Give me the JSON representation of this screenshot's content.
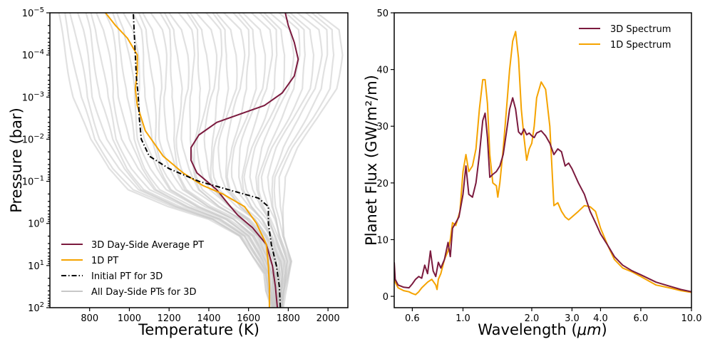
{
  "chart_data": [
    {
      "type": "line",
      "panel": "left",
      "xlabel": "Temperature (K)",
      "ylabel": "Pressure (bar)",
      "xlim": [
        600,
        2100
      ],
      "ylim_log10_pressure": [
        2,
        -5
      ],
      "yscale": "log (inverted)",
      "x_ticks": [
        "800",
        "1000",
        "1200",
        "1400",
        "1600",
        "1800",
        "2000"
      ],
      "x_tick_values": [
        800,
        1000,
        1200,
        1400,
        1600,
        1800,
        2000
      ],
      "y_ticks": [
        {
          "base": "10",
          "exp": "−5",
          "log": -5
        },
        {
          "base": "10",
          "exp": "−4",
          "log": -4
        },
        {
          "base": "10",
          "exp": "−3",
          "log": -3
        },
        {
          "base": "10",
          "exp": "−2",
          "log": -2
        },
        {
          "base": "10",
          "exp": "−1",
          "log": -1
        },
        {
          "base": "10",
          "exp": "0",
          "log": 0
        },
        {
          "base": "10",
          "exp": "1",
          "log": 1
        },
        {
          "base": "10",
          "exp": "2",
          "log": 2
        }
      ],
      "legend_position": "lower-left",
      "series": [
        {
          "name": "All Day-Side PTs for 3D",
          "color": "#c8c8c8",
          "band": true,
          "cool_edge": [
            [
              640,
              -5
            ],
            [
              680,
              -4
            ],
            [
              720,
              -3
            ],
            [
              800,
              -2
            ],
            [
              900,
              -1.3
            ],
            [
              1000,
              -0.8
            ],
            [
              1200,
              -0.4
            ],
            [
              1400,
              -0.1
            ],
            [
              1550,
              0.3
            ],
            [
              1620,
              0.8
            ],
            [
              1680,
              1.2
            ],
            [
              1690,
              1.6
            ],
            [
              1720,
              2
            ]
          ],
          "hot_edge": [
            [
              1950,
              -5
            ],
            [
              2060,
              -4.6
            ],
            [
              2070,
              -4
            ],
            [
              2040,
              -3.2
            ],
            [
              1950,
              -2.5
            ],
            [
              1850,
              -1.8
            ],
            [
              1780,
              -1.1
            ],
            [
              1770,
              -0.4
            ],
            [
              1780,
              0.3
            ],
            [
              1820,
              0.9
            ],
            [
              1800,
              1.3
            ],
            [
              1780,
              1.7
            ],
            [
              1770,
              2
            ]
          ],
          "line_count": 40
        },
        {
          "name": "3D Day-Side Average PT",
          "color": "#7b1a3e",
          "points": [
            [
              1745,
              2
            ],
            [
              1735,
              1.5
            ],
            [
              1720,
              1.0
            ],
            [
              1690,
              0.5
            ],
            [
              1620,
              0.1
            ],
            [
              1545,
              -0.2
            ],
            [
              1500,
              -0.45
            ],
            [
              1440,
              -0.8
            ],
            [
              1340,
              -1.2
            ],
            [
              1310,
              -1.5
            ],
            [
              1310,
              -1.8
            ],
            [
              1350,
              -2.1
            ],
            [
              1440,
              -2.4
            ],
            [
              1560,
              -2.6
            ],
            [
              1680,
              -2.8
            ],
            [
              1770,
              -3.1
            ],
            [
              1830,
              -3.5
            ],
            [
              1850,
              -3.9
            ],
            [
              1830,
              -4.3
            ],
            [
              1800,
              -4.7
            ],
            [
              1785,
              -5
            ]
          ]
        },
        {
          "name": "1D PT",
          "color": "#f5a300",
          "points": [
            [
              1705,
              2
            ],
            [
              1705,
              1.5
            ],
            [
              1700,
              1.0
            ],
            [
              1690,
              0.5
            ],
            [
              1640,
              0.0
            ],
            [
              1580,
              -0.4
            ],
            [
              1470,
              -0.7
            ],
            [
              1370,
              -0.9
            ],
            [
              1270,
              -1.2
            ],
            [
              1170,
              -1.6
            ],
            [
              1080,
              -2.2
            ],
            [
              1040,
              -2.8
            ],
            [
              1030,
              -3.2
            ],
            [
              1040,
              -3.6
            ],
            [
              1040,
              -4.0
            ],
            [
              990,
              -4.4
            ],
            [
              930,
              -4.7
            ],
            [
              880,
              -5
            ]
          ]
        },
        {
          "name": "Initial PT for 3D",
          "color": "#000000",
          "dash": "dashdot",
          "points": [
            [
              1760,
              2
            ],
            [
              1755,
              1.5
            ],
            [
              1740,
              1.0
            ],
            [
              1715,
              0.5
            ],
            [
              1700,
              0.0
            ],
            [
              1700,
              -0.4
            ],
            [
              1650,
              -0.6
            ],
            [
              1500,
              -0.8
            ],
            [
              1350,
              -1.0
            ],
            [
              1200,
              -1.3
            ],
            [
              1100,
              -1.6
            ],
            [
              1060,
              -2.0
            ],
            [
              1050,
              -2.5
            ],
            [
              1045,
              -3.0
            ],
            [
              1035,
              -3.5
            ],
            [
              1030,
              -4.0
            ],
            [
              1025,
              -4.5
            ],
            [
              1020,
              -5
            ]
          ]
        }
      ]
    },
    {
      "type": "line",
      "panel": "right",
      "xlabel_prefix": "Wavelength (",
      "xlabel_unit": "μm",
      "xlabel_suffix": ")",
      "ylabel": "Planet Flux (GW/m²/m)",
      "xscale": "log",
      "xlim": [
        0.5,
        10.0
      ],
      "ylim": [
        -2,
        50
      ],
      "x_ticks": [
        "0.6",
        "1.0",
        "2.0",
        "3.0",
        "4.0",
        "6.0",
        "10.0"
      ],
      "x_tick_values": [
        0.6,
        1.0,
        2.0,
        3.0,
        4.0,
        6.0,
        10.0
      ],
      "y_ticks": [
        "0",
        "10",
        "20",
        "30",
        "40",
        "50"
      ],
      "y_tick_values": [
        0,
        10,
        20,
        30,
        40,
        50
      ],
      "legend_position": "top-right",
      "series": [
        {
          "name": "3D Spectrum",
          "color": "#7b1a3e",
          "points": [
            [
              0.5,
              6
            ],
            [
              0.505,
              3
            ],
            [
              0.52,
              2
            ],
            [
              0.55,
              1.6
            ],
            [
              0.58,
              1.5
            ],
            [
              0.6,
              2.2
            ],
            [
              0.62,
              3
            ],
            [
              0.64,
              3.5
            ],
            [
              0.66,
              3.2
            ],
            [
              0.68,
              5.5
            ],
            [
              0.7,
              4
            ],
            [
              0.72,
              8
            ],
            [
              0.74,
              4.5
            ],
            [
              0.76,
              3.5
            ],
            [
              0.78,
              6
            ],
            [
              0.8,
              5
            ],
            [
              0.83,
              6.5
            ],
            [
              0.86,
              9.5
            ],
            [
              0.88,
              7
            ],
            [
              0.9,
              12
            ],
            [
              0.93,
              13
            ],
            [
              0.96,
              14
            ],
            [
              0.98,
              16
            ],
            [
              1.0,
              18
            ],
            [
              1.03,
              23
            ],
            [
              1.06,
              18
            ],
            [
              1.1,
              17.5
            ],
            [
              1.14,
              20
            ],
            [
              1.18,
              25
            ],
            [
              1.22,
              31
            ],
            [
              1.25,
              32.3
            ],
            [
              1.28,
              28
            ],
            [
              1.31,
              21
            ],
            [
              1.35,
              21.5
            ],
            [
              1.4,
              22
            ],
            [
              1.45,
              23
            ],
            [
              1.5,
              25
            ],
            [
              1.55,
              29
            ],
            [
              1.6,
              33
            ],
            [
              1.65,
              35
            ],
            [
              1.7,
              33
            ],
            [
              1.75,
              29
            ],
            [
              1.8,
              28.5
            ],
            [
              1.85,
              29.5
            ],
            [
              1.9,
              28.5
            ],
            [
              1.95,
              28.8
            ],
            [
              2.0,
              28.3
            ],
            [
              2.05,
              28
            ],
            [
              2.1,
              28.8
            ],
            [
              2.2,
              29.2
            ],
            [
              2.3,
              28.3
            ],
            [
              2.4,
              27
            ],
            [
              2.5,
              25
            ],
            [
              2.6,
              26
            ],
            [
              2.7,
              25.5
            ],
            [
              2.8,
              23
            ],
            [
              2.9,
              23.5
            ],
            [
              3.0,
              22.5
            ],
            [
              3.2,
              20
            ],
            [
              3.4,
              18
            ],
            [
              3.6,
              15
            ],
            [
              3.8,
              13
            ],
            [
              4.0,
              11
            ],
            [
              4.3,
              9
            ],
            [
              4.6,
              7
            ],
            [
              5.0,
              5.5
            ],
            [
              5.5,
              4.5
            ],
            [
              6.0,
              3.8
            ],
            [
              7.0,
              2.5
            ],
            [
              8.0,
              1.8
            ],
            [
              9.0,
              1.2
            ],
            [
              10.0,
              0.8
            ]
          ]
        },
        {
          "name": "1D Spectrum",
          "color": "#f5a300",
          "points": [
            [
              0.5,
              4
            ],
            [
              0.505,
              2.5
            ],
            [
              0.52,
              1.5
            ],
            [
              0.55,
              1
            ],
            [
              0.58,
              0.8
            ],
            [
              0.6,
              0.5
            ],
            [
              0.62,
              0.3
            ],
            [
              0.64,
              0.8
            ],
            [
              0.66,
              1.5
            ],
            [
              0.7,
              2.5
            ],
            [
              0.73,
              3
            ],
            [
              0.76,
              2
            ],
            [
              0.77,
              1.2
            ],
            [
              0.78,
              3
            ],
            [
              0.8,
              4
            ],
            [
              0.83,
              6.5
            ],
            [
              0.86,
              8
            ],
            [
              0.88,
              10
            ],
            [
              0.9,
              13
            ],
            [
              0.93,
              12.5
            ],
            [
              0.97,
              15
            ],
            [
              1.0,
              22
            ],
            [
              1.03,
              25
            ],
            [
              1.06,
              22
            ],
            [
              1.1,
              23
            ],
            [
              1.14,
              26
            ],
            [
              1.18,
              33
            ],
            [
              1.22,
              38.2
            ],
            [
              1.25,
              38.2
            ],
            [
              1.28,
              34
            ],
            [
              1.31,
              25
            ],
            [
              1.35,
              20
            ],
            [
              1.4,
              19.5
            ],
            [
              1.42,
              17.5
            ],
            [
              1.45,
              20
            ],
            [
              1.5,
              26
            ],
            [
              1.55,
              33
            ],
            [
              1.6,
              40
            ],
            [
              1.65,
              45
            ],
            [
              1.7,
              46.7
            ],
            [
              1.75,
              42
            ],
            [
              1.8,
              33
            ],
            [
              1.85,
              28
            ],
            [
              1.9,
              24
            ],
            [
              1.95,
              26
            ],
            [
              2.0,
              27
            ],
            [
              2.05,
              30
            ],
            [
              2.1,
              35
            ],
            [
              2.2,
              37.8
            ],
            [
              2.3,
              36.5
            ],
            [
              2.4,
              30
            ],
            [
              2.5,
              16
            ],
            [
              2.6,
              16.5
            ],
            [
              2.7,
              15
            ],
            [
              2.8,
              14
            ],
            [
              2.9,
              13.5
            ],
            [
              3.0,
              14
            ],
            [
              3.2,
              15
            ],
            [
              3.4,
              16
            ],
            [
              3.6,
              15.8
            ],
            [
              3.8,
              15
            ],
            [
              4.0,
              12
            ],
            [
              4.3,
              9
            ],
            [
              4.6,
              6.5
            ],
            [
              5.0,
              5
            ],
            [
              5.5,
              4.3
            ],
            [
              6.0,
              3.5
            ],
            [
              7.0,
              2
            ],
            [
              8.0,
              1.5
            ],
            [
              9.0,
              1
            ],
            [
              10.0,
              0.7
            ]
          ]
        }
      ]
    }
  ]
}
